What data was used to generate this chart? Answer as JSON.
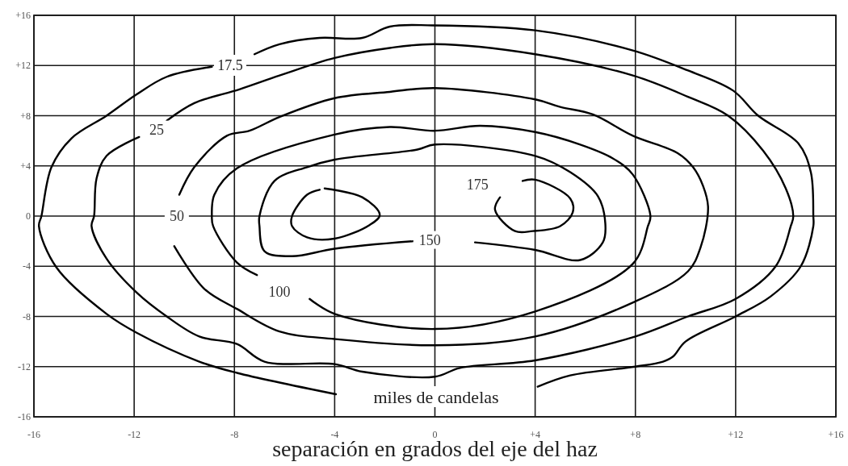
{
  "chart_data": {
    "type": "line",
    "xlabel": "separación en grados del eje del haz",
    "xlim": [
      -16,
      16
    ],
    "ylim": [
      -16,
      16
    ],
    "xticks": [
      {
        "value": -16,
        "label": "-16"
      },
      {
        "value": -12,
        "label": "-12"
      },
      {
        "value": -8,
        "label": "-8"
      },
      {
        "value": -4,
        "label": "-4"
      },
      0,
      {
        "value": 4,
        "label": "+4"
      },
      {
        "value": 8,
        "label": "+8"
      },
      {
        "value": 12,
        "label": "+12"
      },
      {
        "value": 16,
        "label": "+16"
      }
    ],
    "yticks": [
      {
        "value": -16,
        "label": "-16"
      },
      {
        "value": -12,
        "label": "-12"
      },
      {
        "value": -8,
        "label": "-8"
      },
      {
        "value": -4,
        "label": "-4"
      },
      0,
      {
        "value": 4,
        "label": "+4"
      },
      {
        "value": 8,
        "label": "+8"
      },
      {
        "value": 12,
        "label": "+12"
      },
      {
        "value": 16,
        "label": "+16"
      }
    ],
    "grid": true,
    "series": [
      {
        "color": "#000000",
        "x": [
          -7.2,
          -6.2,
          -4.6,
          -2.9,
          -1.8,
          -0.1,
          4,
          7.9,
          10.1,
          11.9,
          12.9,
          14.5,
          15,
          15.1,
          15.1,
          14.6,
          13.4,
          12,
          10,
          9.5,
          9.1,
          8,
          5.4,
          4.1
        ],
        "values": [
          12.9,
          13.7,
          14.2,
          14.2,
          15.1,
          15.2,
          14.8,
          13.2,
          11.6,
          10,
          8,
          5.8,
          3.5,
          0,
          -0.8,
          -4,
          -6.4,
          -8,
          -10,
          -11.2,
          -11.6,
          -12,
          -12.7,
          -13.6
        ]
      },
      {
        "color": "#000000",
        "x": [
          -3.95,
          -7.9,
          -9.4,
          -11.9,
          -13.1,
          -15.1,
          -15.8,
          -15.7,
          -15.3,
          -14.5,
          -13.1,
          -11.9,
          -10.7,
          -8.9
        ],
        "values": [
          -14.2,
          -12.5,
          -11.6,
          -9.3,
          -7.8,
          -4.1,
          -0.8,
          0,
          3.9,
          6.2,
          8,
          9.7,
          11.1,
          11.9
        ]
      },
      {
        "color": "#000000",
        "x": [
          -10.7,
          -9.6,
          -7.8,
          -6.2,
          -4,
          -1.8,
          0,
          4,
          7.9,
          10.1,
          11.7,
          13.1,
          14,
          14.3,
          14.2,
          13.6,
          12,
          10.1,
          8,
          4,
          1,
          0,
          -2.9,
          -4,
          -6.8,
          -7.9,
          -9.4,
          -10.7,
          -11.9,
          -13.1,
          -13.7,
          -13.6,
          -13.5,
          -13.1,
          -11.8
        ],
        "values": [
          7.6,
          9,
          10.1,
          11.2,
          12.6,
          13.4,
          13.7,
          12.9,
          11.2,
          9.5,
          8,
          5.2,
          2.2,
          0,
          -0.8,
          -4,
          -6.6,
          -8,
          -9.6,
          -11.5,
          -12.1,
          -12.8,
          -12.4,
          -11.8,
          -11.6,
          -10.2,
          -9.6,
          -8,
          -6.1,
          -3.4,
          -0.8,
          0,
          3,
          4.8,
          6.3
        ]
      },
      {
        "color": "#000000",
        "x": [
          -10.2,
          -9.6,
          -8.3,
          -7.4,
          -6.2,
          -4,
          -1.8,
          0,
          4,
          5,
          6.3,
          7.9,
          9.7,
          10.3,
          10.7,
          10.9,
          10.6,
          10.1,
          8,
          4,
          0,
          -4,
          -6.2,
          -7.9,
          -9.2,
          -10.4
        ],
        "values": [
          1.7,
          3.9,
          6.4,
          6.8,
          7.9,
          9.4,
          9.9,
          10.2,
          9.3,
          8.7,
          8.1,
          6.4,
          5,
          3.9,
          2.4,
          0.7,
          -2.5,
          -4.4,
          -6.8,
          -9.6,
          -10.3,
          -9.8,
          -9.2,
          -7.4,
          -5.8,
          -2.4
        ]
      },
      {
        "color": "#000000",
        "x": [
          -7.1,
          -7.9,
          -8.85,
          -8.9,
          -8.8,
          -7.9,
          -4,
          -1.8,
          0,
          1.8,
          4,
          5.8,
          7.1,
          7.9,
          8.6,
          8.5,
          7.9,
          4,
          0,
          -4,
          -5
        ],
        "values": [
          -4.7,
          -3.7,
          -0.8,
          0,
          1.7,
          3.8,
          6.5,
          7.1,
          6.8,
          7.2,
          6.7,
          5.7,
          4.6,
          3.3,
          0,
          -0.8,
          -3.8,
          -7.6,
          -9,
          -7.8,
          -6.6
        ]
      },
      {
        "color": "#000000",
        "x": [
          1.6,
          4,
          5.8,
          6.7,
          6.8,
          6.5,
          5.4,
          4,
          0,
          -0.7,
          -4,
          -5.1,
          -6.4,
          -7,
          -7,
          -6.8,
          -5.7,
          -4,
          -0.85
        ],
        "values": [
          -2.1,
          -2.7,
          -3.5,
          -2.1,
          -0.6,
          1.6,
          3.5,
          4.8,
          5.7,
          5.3,
          4.5,
          3.9,
          2.8,
          0,
          -0.8,
          -2.8,
          -3.2,
          -2.6,
          -2
        ]
      },
      {
        "color": "#000000",
        "x": [
          -4.4,
          -2.9,
          -2.2,
          -2.6,
          -4,
          -5.1,
          -5.7,
          -5.7,
          -5.1,
          -4.6,
          0,
          3.5,
          4,
          5.4,
          5.5,
          5,
          3.9,
          3.2,
          2.4,
          2.6
        ],
        "values": [
          2.2,
          1.5,
          0.1,
          -0.7,
          -1.8,
          -1.7,
          -0.8,
          0,
          1.7,
          2.1,
          null,
          2.8,
          2.9,
          1.4,
          0.3,
          -0.8,
          -1.2,
          -1.2,
          0.5,
          1.5
        ]
      }
    ],
    "annotations": [
      "17.5",
      {
        "text": "25",
        "x": -11.1,
        "y": 6.9
      },
      {
        "text": "50",
        "x": -10.3,
        "y": 0
      },
      {
        "text": "100",
        "x": -6.2,
        "y": -6
      },
      {
        "text": "150",
        "x": -0.2,
        "y": -1.9
      },
      {
        "text": "175",
        "x": 1.7,
        "y": 2.5
      },
      "miles de candelas"
    ]
  }
}
